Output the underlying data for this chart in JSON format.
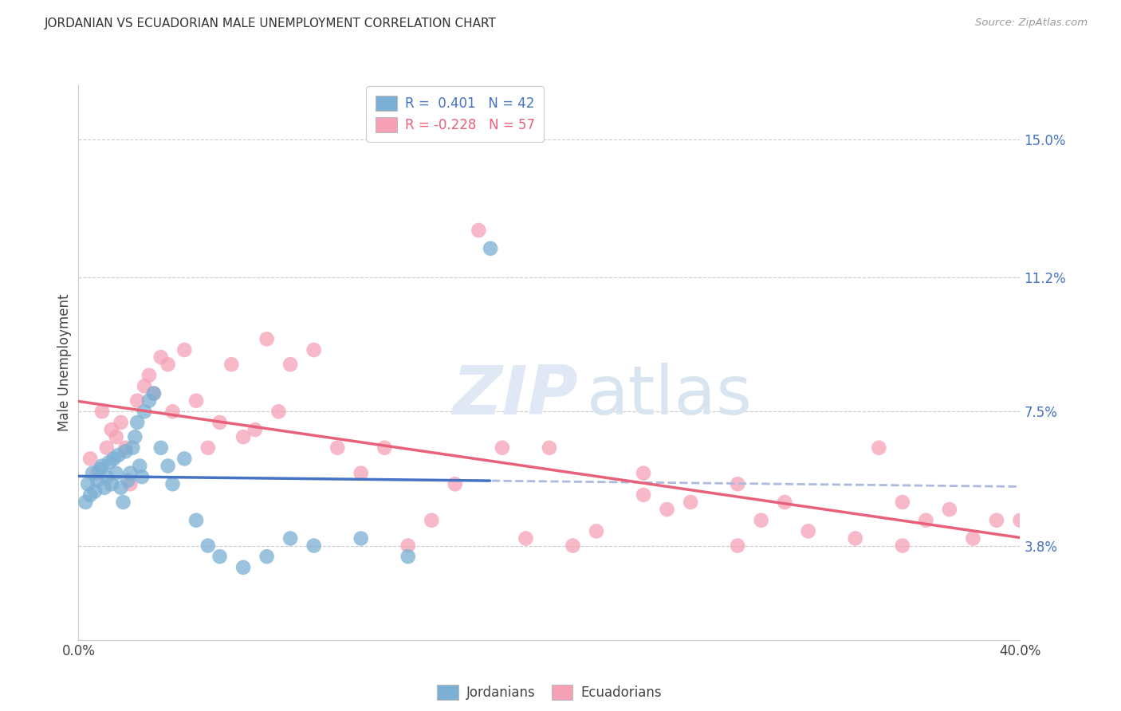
{
  "title": "JORDANIAN VS ECUADORIAN MALE UNEMPLOYMENT CORRELATION CHART",
  "source": "Source: ZipAtlas.com",
  "ylabel": "Male Unemployment",
  "ytick_values": [
    3.8,
    7.5,
    11.2,
    15.0
  ],
  "xlim": [
    0.0,
    40.0
  ],
  "ylim": [
    1.2,
    16.5
  ],
  "blue_R": "0.401",
  "blue_N": "42",
  "pink_R": "-0.228",
  "pink_N": "57",
  "blue_color": "#7BAFD4",
  "pink_color": "#F5A0B5",
  "blue_line_color": "#4472C4",
  "pink_line_color": "#E8607A",
  "dashed_line_color": "#AABBDD",
  "background_color": "#FFFFFF",
  "watermark_zip": "ZIP",
  "watermark_atlas": "atlas",
  "jordanians_x": [
    0.3,
    0.4,
    0.5,
    0.6,
    0.7,
    0.8,
    0.9,
    1.0,
    1.1,
    1.2,
    1.3,
    1.4,
    1.5,
    1.6,
    1.7,
    1.8,
    1.9,
    2.0,
    2.1,
    2.2,
    2.3,
    2.4,
    2.5,
    2.6,
    2.7,
    2.8,
    3.0,
    3.2,
    3.5,
    3.8,
    4.0,
    4.5,
    5.0,
    5.5,
    6.0,
    7.0,
    8.0,
    9.0,
    10.0,
    12.0,
    14.0,
    17.5
  ],
  "jordanians_y": [
    5.0,
    5.5,
    5.2,
    5.8,
    5.3,
    5.6,
    5.9,
    6.0,
    5.4,
    5.7,
    6.1,
    5.5,
    6.2,
    5.8,
    6.3,
    5.4,
    5.0,
    6.4,
    5.6,
    5.8,
    6.5,
    6.8,
    7.2,
    6.0,
    5.7,
    7.5,
    7.8,
    8.0,
    6.5,
    6.0,
    5.5,
    6.2,
    4.5,
    3.8,
    3.5,
    3.2,
    3.5,
    4.0,
    3.8,
    4.0,
    3.5,
    12.0
  ],
  "ecuadorians_x": [
    0.5,
    0.8,
    1.0,
    1.2,
    1.4,
    1.6,
    1.8,
    2.0,
    2.2,
    2.5,
    2.8,
    3.0,
    3.2,
    3.5,
    3.8,
    4.0,
    4.5,
    5.0,
    5.5,
    6.0,
    6.5,
    7.0,
    7.5,
    8.0,
    8.5,
    9.0,
    10.0,
    11.0,
    12.0,
    13.0,
    14.0,
    15.0,
    16.0,
    17.0,
    18.0,
    19.0,
    20.0,
    21.0,
    22.0,
    24.0,
    25.0,
    26.0,
    28.0,
    29.0,
    30.0,
    31.0,
    33.0,
    34.0,
    35.0,
    36.0,
    37.0,
    38.0,
    39.0,
    40.0,
    24.0,
    28.0,
    35.0
  ],
  "ecuadorians_y": [
    6.2,
    5.8,
    7.5,
    6.5,
    7.0,
    6.8,
    7.2,
    6.5,
    5.5,
    7.8,
    8.2,
    8.5,
    8.0,
    9.0,
    8.8,
    7.5,
    9.2,
    7.8,
    6.5,
    7.2,
    8.8,
    6.8,
    7.0,
    9.5,
    7.5,
    8.8,
    9.2,
    6.5,
    5.8,
    6.5,
    3.8,
    4.5,
    5.5,
    12.5,
    6.5,
    4.0,
    6.5,
    3.8,
    4.2,
    5.2,
    4.8,
    5.0,
    5.5,
    4.5,
    5.0,
    4.2,
    4.0,
    6.5,
    5.0,
    4.5,
    4.8,
    4.0,
    4.5,
    4.5,
    5.8,
    3.8,
    3.8
  ]
}
